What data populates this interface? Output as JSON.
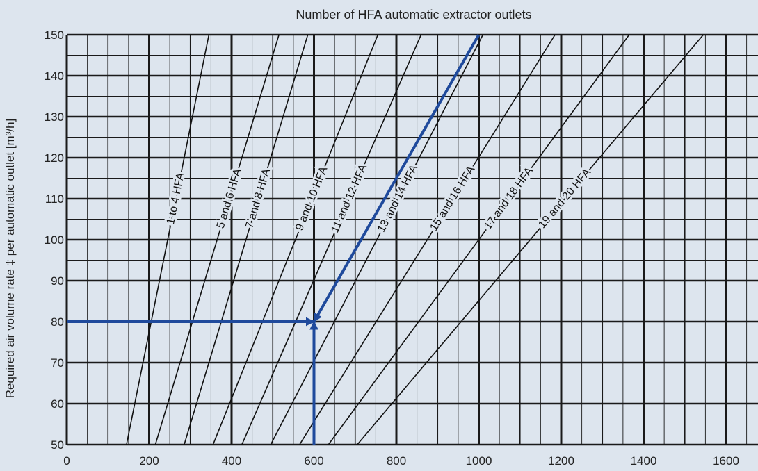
{
  "chart_data": {
    "type": "line",
    "title": "Number of HFA automatic extractor outlets",
    "xlabel": "",
    "ylabel": "Required air volume rate ‡ per automatic outlet [m³/h]",
    "xlim": [
      0,
      1700
    ],
    "ylim": [
      50,
      150
    ],
    "xticks": [
      0,
      200,
      400,
      600,
      800,
      1000,
      1200,
      1400,
      1600
    ],
    "yticks": [
      50,
      60,
      70,
      80,
      90,
      100,
      110,
      120,
      130,
      140,
      150
    ],
    "grid": true,
    "series": [
      {
        "name": "1 to 4 HFA",
        "x": [
          145,
          345
        ],
        "y": [
          50,
          150
        ]
      },
      {
        "name": "5 and 6 HFA",
        "x": [
          215,
          515
        ],
        "y": [
          50,
          150
        ]
      },
      {
        "name": "7 and 8 HFA",
        "x": [
          285,
          585
        ],
        "y": [
          50,
          150
        ]
      },
      {
        "name": "9 and 10 HFA",
        "x": [
          355,
          755
        ],
        "y": [
          50,
          150
        ]
      },
      {
        "name": "11 and 12 HFA",
        "x": [
          425,
          860
        ],
        "y": [
          50,
          150
        ]
      },
      {
        "name": "13 and 14 HFA",
        "x": [
          495,
          1010
        ],
        "y": [
          50,
          150
        ]
      },
      {
        "name": "15 and 16 HFA",
        "x": [
          565,
          1185
        ],
        "y": [
          50,
          150
        ]
      },
      {
        "name": "17 and 18 HFA",
        "x": [
          635,
          1365
        ],
        "y": [
          50,
          150
        ]
      },
      {
        "name": "19 and 20 HFA",
        "x": [
          705,
          1545
        ],
        "y": [
          50,
          150
        ]
      }
    ],
    "example": {
      "color": "#1f4a9c",
      "horizontal_arrow": {
        "from": [
          0,
          80
        ],
        "to": [
          600,
          80
        ]
      },
      "vertical_arrow": {
        "from": [
          600,
          50
        ],
        "to": [
          600,
          80
        ]
      },
      "diagonal_arrow": {
        "from": [
          1000,
          150
        ],
        "to": [
          600,
          80
        ]
      }
    },
    "colors": {
      "background": "#dde5ee",
      "grid": "#1a1a1a",
      "curves": "#111111",
      "arrows": "#1f4a9c"
    }
  }
}
